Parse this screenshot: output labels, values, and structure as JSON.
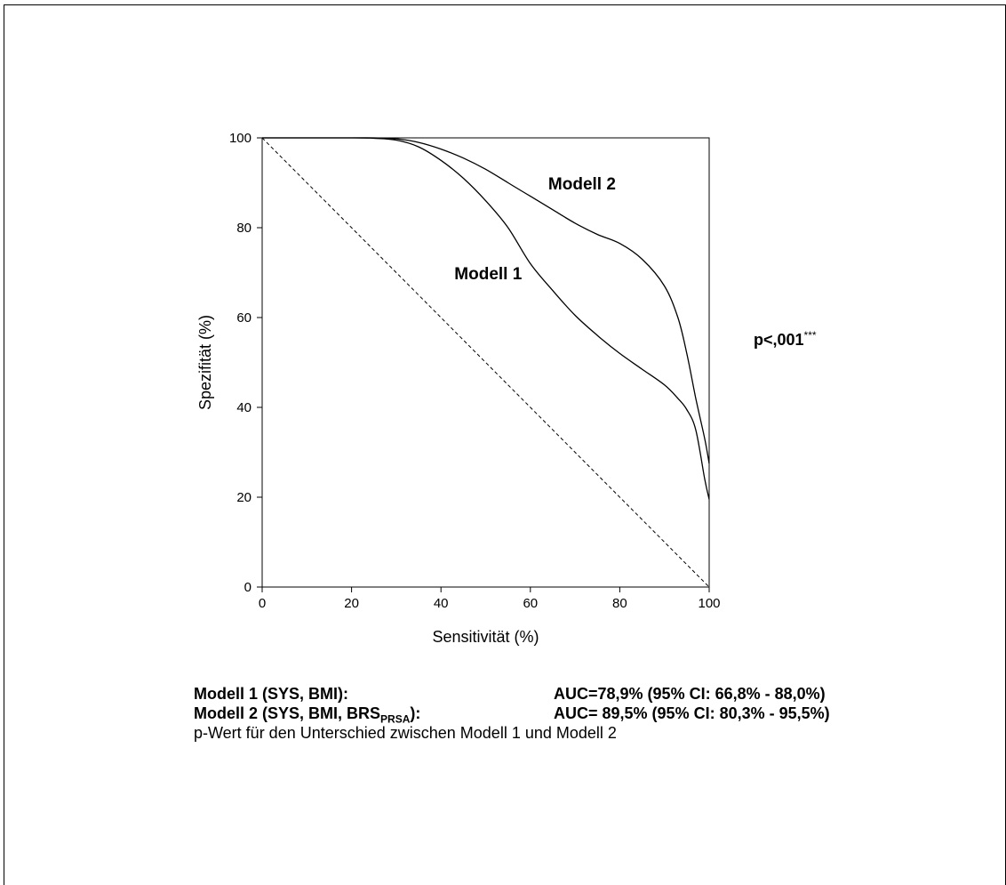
{
  "chart_data": {
    "type": "line",
    "xlabel": "Sensitivität (%)",
    "ylabel": "Spezifität (%)",
    "xlim": [
      0,
      100
    ],
    "ylim": [
      0,
      100
    ],
    "xticks": [
      "0",
      "20",
      "40",
      "60",
      "80",
      "100"
    ],
    "yticks": [
      "0",
      "20",
      "40",
      "60",
      "80",
      "100"
    ],
    "grid": false,
    "series": [
      {
        "name": "Modell 1",
        "x": [
          0,
          10,
          20,
          25,
          30,
          35,
          40,
          45,
          50,
          55,
          60,
          65,
          70,
          75,
          80,
          85,
          90,
          93,
          95,
          97,
          99,
          100
        ],
        "y": [
          100,
          100,
          100,
          99.9,
          99.5,
          98,
          95,
          91,
          86,
          80,
          72,
          66,
          60.5,
          56,
          52,
          48.5,
          45,
          42,
          39.5,
          35,
          24,
          19.5
        ]
      },
      {
        "name": "Modell 2",
        "x": [
          0,
          10,
          20,
          25,
          30,
          35,
          40,
          45,
          50,
          55,
          60,
          65,
          70,
          75,
          80,
          85,
          90,
          93,
          95,
          97,
          99,
          100
        ],
        "y": [
          100,
          100,
          100,
          100,
          99.8,
          99,
          97.5,
          95.5,
          93,
          90,
          87,
          84,
          81,
          78.5,
          76.5,
          73,
          67,
          60,
          52,
          42,
          33,
          27.5
        ]
      },
      {
        "name": "",
        "style": "dashed",
        "x": [
          0,
          100
        ],
        "y": [
          100,
          0
        ]
      }
    ],
    "annotations": [
      "Modell 1",
      "Modell 2"
    ]
  },
  "significance": {
    "text": "p<,001",
    "stars": "***"
  },
  "legend": {
    "rows": [
      {
        "name": "Modell 1 (SYS, BMI):",
        "auc": "AUC=78,9% (95% CI: 66,8% - 88,0%)"
      },
      {
        "name_prefix": "Modell 2 (SYS, BMI, BRS",
        "name_sub": "PRSA",
        "name_suffix": "):",
        "auc": "AUC= 89,5% (95% CI: 80,3% - 95,5%)"
      }
    ],
    "note": "p-Wert für den Unterschied zwischen Modell 1 und Modell 2"
  }
}
